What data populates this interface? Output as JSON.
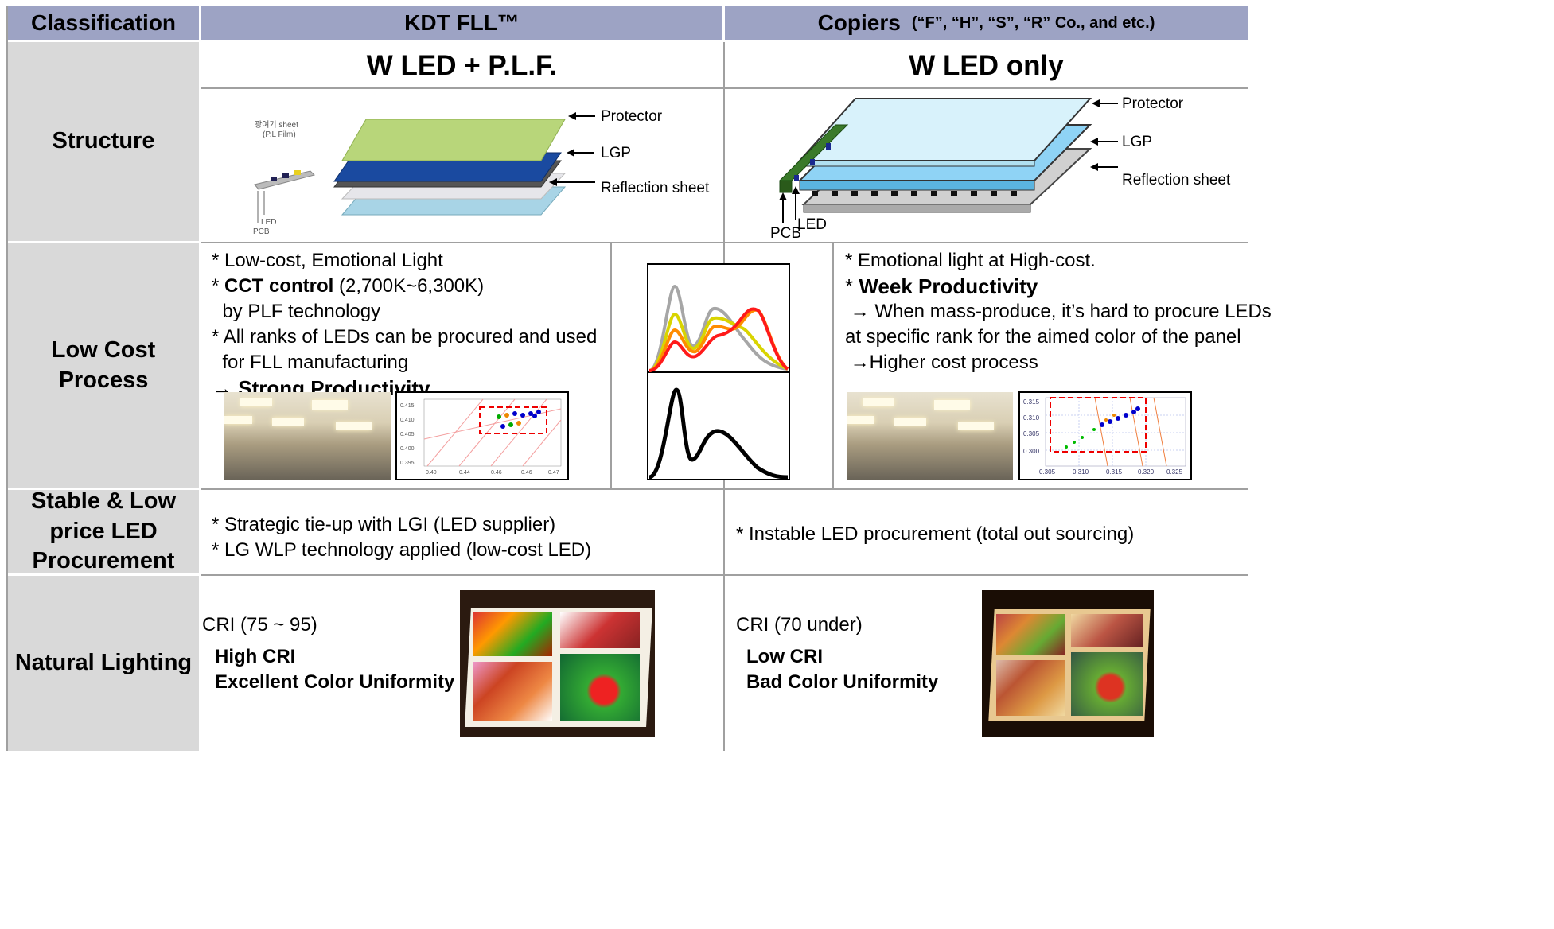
{
  "header": {
    "classification": "Classification",
    "kdt": "KDT FLL™",
    "copiers": "Copiers",
    "copiers_note": "(“F”, “H”, “S”, “R” Co., and etc.)"
  },
  "subheader": {
    "kdt": "W LED + P.L.F.",
    "copiers": "W LED only"
  },
  "rows": {
    "structure": "Structure",
    "low_cost": "Low Cost Process",
    "procurement": "Stable & Low price LED Procurement",
    "natural": "Natural Lighting"
  },
  "structure": {
    "kdt": {
      "protector": "Protector",
      "lgp": "LGP",
      "reflection": "Reflection sheet",
      "film_label_1": "광여기 sheet",
      "film_label_2": "(P.L Film)",
      "led": "LED",
      "pcb": "PCB"
    },
    "copiers": {
      "protector": "Protector",
      "lgp": "LGP",
      "reflection": "Reflection sheet",
      "pcb": "PCB",
      "led": "LED"
    }
  },
  "low_cost": {
    "kdt": {
      "line1": "* Low-cost, Emotional Light",
      "line2_prefix": "* ",
      "line2_bold": "CCT control",
      "line2_rest": " (2,700K~6,300K)",
      "line3": "  by PLF technology",
      "line4": "* All ranks of LEDs can be procured and used",
      "line5": "  for FLL manufacturing",
      "line6": "→ Strong Productivity"
    },
    "copiers": {
      "line1": "* Emotional light at High-cost.",
      "line2_prefix": "* ",
      "line2_bold": "Week Productivity",
      "line3": " → When mass-produce, it’s hard to procure LEDs",
      "line4": "at specific rank for the aimed color of the panel",
      "line5": " →Higher cost process"
    },
    "scatter_left_ticks_x": [
      "0.40",
      "0.44",
      "0.46",
      "0.46",
      "0.47"
    ],
    "scatter_left_ticks_y": [
      "0.415",
      "0.410",
      "0.405",
      "0.400",
      "0.395"
    ],
    "scatter_right_ticks_x": [
      "0.305",
      "0.310",
      "0.315",
      "0.320",
      "0.325"
    ],
    "scatter_right_ticks_y": [
      "0.315",
      "0.310",
      "0.305",
      "0.300"
    ]
  },
  "procurement": {
    "kdt_1": "* Strategic tie-up with LGI (LED supplier)",
    "kdt_2": "* LG WLP technology applied (low-cost LED)",
    "copiers_1": "* Instable LED procurement (total out sourcing)"
  },
  "natural": {
    "kdt_cri": "CRI (75 ~ 95)",
    "kdt_b1": "High CRI",
    "kdt_b2": "Excellent Color Uniformity",
    "copiers_cri": "CRI (70 under)",
    "copiers_b1": "Low CRI",
    "copiers_b2": "Bad Color Uniformity"
  },
  "colors": {
    "header_bg": "#9da3c4",
    "label_bg": "#d9d9d9",
    "grid_line": "#a0a0a0",
    "spectrum_gray": "#a6a6a6",
    "spectrum_yellow": "#d9d400",
    "spectrum_orange": "#ff8c00",
    "spectrum_red": "#ff1a1a"
  },
  "icons": [
    "arrow-left-icon",
    "arrow-up-icon"
  ]
}
